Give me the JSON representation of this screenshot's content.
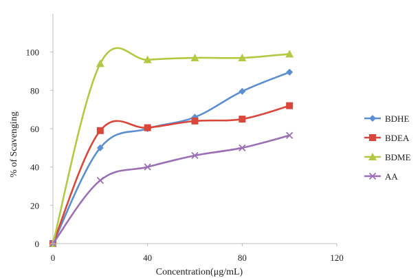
{
  "chart_data": {
    "type": "line",
    "xlabel": "Concentration(μg/mL)",
    "ylabel": "% of Scavenging",
    "xlim": [
      0,
      120
    ],
    "ylim": [
      0,
      120
    ],
    "x_ticks": [
      "0",
      "40",
      "80",
      "120"
    ],
    "y_ticks": [
      "0",
      "20",
      "40",
      "60",
      "80",
      "100"
    ],
    "x": [
      0,
      20,
      40,
      60,
      80,
      100
    ],
    "grid": false,
    "smooth": true,
    "legend_position": "right",
    "series": [
      {
        "name": "BDHE",
        "color": "#5b8fd1",
        "marker": "diamond",
        "values": [
          0,
          50,
          60,
          66,
          79.5,
          89.5
        ]
      },
      {
        "name": "BDEA",
        "color": "#d9473a",
        "marker": "square",
        "values": [
          0,
          59,
          60.5,
          64,
          65,
          72
        ]
      },
      {
        "name": "BDME",
        "color": "#b5c842",
        "marker": "triangle",
        "values": [
          0,
          94,
          96,
          97,
          97,
          99
        ]
      },
      {
        "name": "AA",
        "color": "#9b6fb5",
        "marker": "x",
        "values": [
          0,
          33,
          40,
          46,
          50,
          56.5
        ]
      }
    ]
  }
}
